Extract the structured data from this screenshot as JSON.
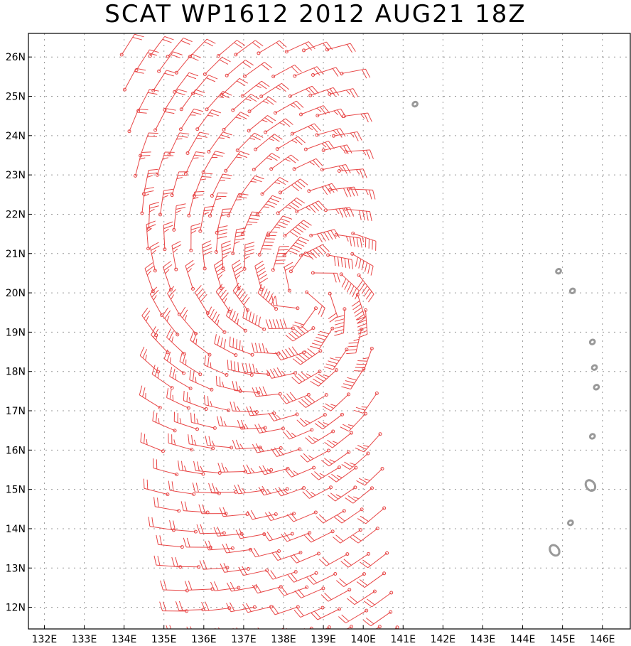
{
  "title": "SCAT WP1612 2012 AUG21 18Z",
  "colors": {
    "wind": "#e84545",
    "land": "#999999",
    "grid": "#999999",
    "frame": "#000000"
  },
  "map": {
    "lon_range": [
      131.6,
      146.7
    ],
    "lat_range": [
      11.45,
      26.6
    ],
    "lon_ticks": [
      "132E",
      "133E",
      "134E",
      "135E",
      "136E",
      "137E",
      "138E",
      "139E",
      "140E",
      "141E",
      "142E",
      "143E",
      "144E",
      "145E",
      "146E"
    ],
    "lat_ticks": [
      "12N",
      "13N",
      "14N",
      "15N",
      "16N",
      "17N",
      "18N",
      "19N",
      "20N",
      "21N",
      "22N",
      "23N",
      "24N",
      "25N",
      "26N"
    ],
    "grid": "dotted",
    "storm_center": {
      "lon": 138.55,
      "lat": 20.0
    },
    "swath": {
      "lon_west_top": 133.8,
      "lon_east_top": 139.5,
      "lon_west_bottom": 135.4,
      "lon_east_bottom": 141.2
    },
    "islands": [
      {
        "name": "",
        "lon": 141.3,
        "lat": 24.8
      },
      {
        "name": "",
        "lon": 144.9,
        "lat": 20.55
      },
      {
        "name": "",
        "lon": 145.25,
        "lat": 20.05
      },
      {
        "name": "",
        "lon": 145.75,
        "lat": 18.75
      },
      {
        "name": "",
        "lon": 145.8,
        "lat": 18.1
      },
      {
        "name": "",
        "lon": 145.85,
        "lat": 17.6
      },
      {
        "name": "",
        "lon": 145.75,
        "lat": 16.35
      },
      {
        "name": "",
        "lon": 145.7,
        "lat": 15.1
      },
      {
        "name": "",
        "lon": 145.2,
        "lat": 14.15
      },
      {
        "name": "",
        "lon": 144.8,
        "lat": 13.45
      }
    ]
  }
}
